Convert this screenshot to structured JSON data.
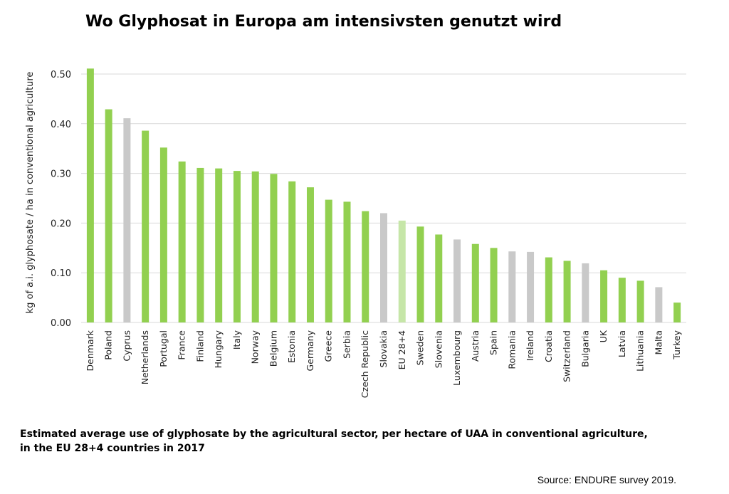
{
  "chart_data": {
    "type": "bar",
    "title": "Wo Glyphosat in Europa am intensivsten genutzt wird",
    "ylabel": "kg of a.i. glyphosate / ha in conventional agriculture",
    "xlabel": "",
    "ylim": [
      0,
      0.5
    ],
    "yticks": [
      "0.00",
      "0.10",
      "0.20",
      "0.30",
      "0.40",
      "0.50"
    ],
    "grid": true,
    "categories": [
      "Denmark",
      "Poland",
      "Cyprus",
      "Netherlands",
      "Portugal",
      "France",
      "Finland",
      "Hungary",
      "Italy",
      "Norway",
      "Belgium",
      "Estonia",
      "Germany",
      "Greece",
      "Serbia",
      "Czech Republic",
      "Slovakia",
      "EU 28+4",
      "Sweden",
      "Slovenia",
      "Luxembourg",
      "Austria",
      "Spain",
      "Romania",
      "Ireland",
      "Croatia",
      "Switzerland",
      "Bulgaria",
      "UK",
      "Latvia",
      "Lithuania",
      "Malta",
      "Turkey"
    ],
    "values": [
      0.511,
      0.429,
      0.411,
      0.386,
      0.352,
      0.324,
      0.311,
      0.31,
      0.305,
      0.304,
      0.299,
      0.284,
      0.272,
      0.247,
      0.243,
      0.224,
      0.22,
      0.205,
      0.193,
      0.177,
      0.167,
      0.158,
      0.15,
      0.143,
      0.142,
      0.131,
      0.124,
      0.119,
      0.105,
      0.09,
      0.084,
      0.071,
      0.04
    ],
    "bar_groups": [
      "green",
      "green",
      "grey",
      "green",
      "green",
      "green",
      "green",
      "green",
      "green",
      "green",
      "green",
      "green",
      "green",
      "green",
      "green",
      "green",
      "grey",
      "lightgreen",
      "green",
      "green",
      "grey",
      "green",
      "green",
      "grey",
      "grey",
      "green",
      "green",
      "grey",
      "green",
      "green",
      "green",
      "grey",
      "green"
    ],
    "colors": {
      "green": "#92d050",
      "grey": "#c9c9c9",
      "lightgreen": "#c6e6a8",
      "grid": "#d9d9d9"
    }
  },
  "caption": {
    "line1": "Estimated average use of glyphosate by the agricultural sector, per hectare of UAA in conventional agriculture,",
    "line2": "in the EU 28+4 countries in 2017"
  },
  "source": "Source: ENDURE survey 2019."
}
